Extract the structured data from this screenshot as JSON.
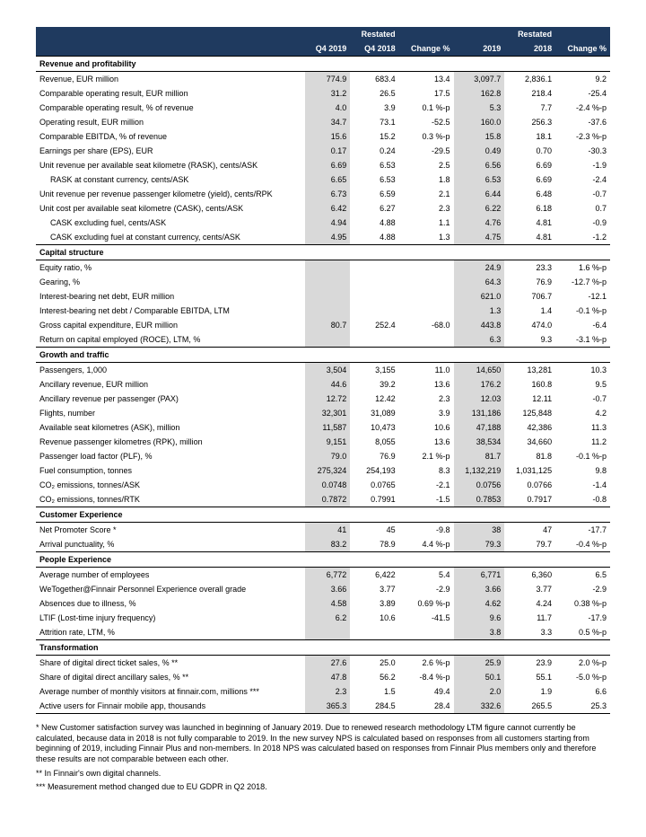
{
  "header": {
    "restated": "Restated",
    "cols": [
      "Q4 2019",
      "Q4 2018",
      "Change %",
      "2019",
      "2018",
      "Change %"
    ]
  },
  "sections": [
    {
      "title": "Revenue and profitability",
      "rows": [
        {
          "l": "Revenue, EUR million",
          "v": [
            "774.9",
            "683.4",
            "13.4",
            "3,097.7",
            "2,836.1",
            "9.2"
          ]
        },
        {
          "l": "Comparable operating result, EUR million",
          "v": [
            "31.2",
            "26.5",
            "17.5",
            "162.8",
            "218.4",
            "-25.4"
          ]
        },
        {
          "l": "Comparable operating result, % of revenue",
          "v": [
            "4.0",
            "3.9",
            "0.1 %-p",
            "5.3",
            "7.7",
            "-2.4 %-p"
          ]
        },
        {
          "l": "Operating result, EUR million",
          "v": [
            "34.7",
            "73.1",
            "-52.5",
            "160.0",
            "256.3",
            "-37.6"
          ]
        },
        {
          "l": "Comparable EBITDA, % of revenue",
          "v": [
            "15.6",
            "15.2",
            "0.3 %-p",
            "15.8",
            "18.1",
            "-2.3 %-p"
          ]
        },
        {
          "l": "Earnings per share (EPS), EUR",
          "v": [
            "0.17",
            "0.24",
            "-29.5",
            "0.49",
            "0.70",
            "-30.3"
          ]
        },
        {
          "l": "Unit revenue per available seat kilometre (RASK), cents/ASK",
          "v": [
            "6.69",
            "6.53",
            "2.5",
            "6.56",
            "6.69",
            "-1.9"
          ]
        },
        {
          "l": "RASK at constant currency, cents/ASK",
          "indent": true,
          "v": [
            "6.65",
            "6.53",
            "1.8",
            "6.53",
            "6.69",
            "-2.4"
          ]
        },
        {
          "l": "Unit revenue per revenue passenger kilometre (yield), cents/RPK",
          "v": [
            "6.73",
            "6.59",
            "2.1",
            "6.44",
            "6.48",
            "-0.7"
          ]
        },
        {
          "l": "Unit cost per available seat kilometre (CASK), cents/ASK",
          "v": [
            "6.42",
            "6.27",
            "2.3",
            "6.22",
            "6.18",
            "0.7"
          ]
        },
        {
          "l": "CASK excluding fuel, cents/ASK",
          "indent": true,
          "v": [
            "4.94",
            "4.88",
            "1.1",
            "4.76",
            "4.81",
            "-0.9"
          ]
        },
        {
          "l": "CASK excluding fuel at constant currency, cents/ASK",
          "indent": true,
          "v": [
            "4.95",
            "4.88",
            "1.3",
            "4.75",
            "4.81",
            "-1.2"
          ]
        }
      ]
    },
    {
      "title": "Capital structure",
      "rows": [
        {
          "l": "Equity ratio, %",
          "v": [
            "",
            "",
            "",
            "24.9",
            "23.3",
            "1.6 %-p"
          ]
        },
        {
          "l": "Gearing, %",
          "v": [
            "",
            "",
            "",
            "64.3",
            "76.9",
            "-12.7 %-p"
          ]
        },
        {
          "l": "Interest-bearing net debt, EUR million",
          "v": [
            "",
            "",
            "",
            "621.0",
            "706.7",
            "-12.1"
          ]
        },
        {
          "l": "Interest-bearing net debt / Comparable EBITDA, LTM",
          "v": [
            "",
            "",
            "",
            "1.3",
            "1.4",
            "-0.1 %-p"
          ]
        },
        {
          "l": "Gross capital expenditure, EUR million",
          "v": [
            "80.7",
            "252.4",
            "-68.0",
            "443.8",
            "474.0",
            "-6.4"
          ]
        },
        {
          "l": "Return on capital employed (ROCE), LTM, %",
          "v": [
            "",
            "",
            "",
            "6.3",
            "9.3",
            "-3.1 %-p"
          ]
        }
      ]
    },
    {
      "title": "Growth and traffic",
      "rows": [
        {
          "l": "Passengers, 1,000",
          "v": [
            "3,504",
            "3,155",
            "11.0",
            "14,650",
            "13,281",
            "10.3"
          ]
        },
        {
          "l": "Ancillary revenue, EUR million",
          "v": [
            "44.6",
            "39.2",
            "13.6",
            "176.2",
            "160.8",
            "9.5"
          ]
        },
        {
          "l": "Ancillary revenue per passenger (PAX)",
          "v": [
            "12.72",
            "12.42",
            "2.3",
            "12.03",
            "12.11",
            "-0.7"
          ]
        },
        {
          "l": "Flights, number",
          "v": [
            "32,301",
            "31,089",
            "3.9",
            "131,186",
            "125,848",
            "4.2"
          ]
        },
        {
          "l": "Available seat kilometres (ASK), million",
          "v": [
            "11,587",
            "10,473",
            "10.6",
            "47,188",
            "42,386",
            "11.3"
          ]
        },
        {
          "l": "Revenue passenger kilometres (RPK), million",
          "v": [
            "9,151",
            "8,055",
            "13.6",
            "38,534",
            "34,660",
            "11.2"
          ]
        },
        {
          "l": "Passenger load factor (PLF), %",
          "v": [
            "79.0",
            "76.9",
            "2.1 %-p",
            "81.7",
            "81.8",
            "-0.1 %-p"
          ]
        },
        {
          "l": "Fuel consumption, tonnes",
          "v": [
            "275,324",
            "254,193",
            "8.3",
            "1,132,219",
            "1,031,125",
            "9.8"
          ]
        },
        {
          "l": "CO₂ emissions, tonnes/ASK",
          "v": [
            "0.0748",
            "0.0765",
            "-2.1",
            "0.0756",
            "0.0766",
            "-1.4"
          ]
        },
        {
          "l": "CO₂ emissions, tonnes/RTK",
          "v": [
            "0.7872",
            "0.7991",
            "-1.5",
            "0.7853",
            "0.7917",
            "-0.8"
          ]
        }
      ]
    },
    {
      "title": "Customer Experience",
      "rows": [
        {
          "l": "Net Promoter Score *",
          "v": [
            "41",
            "45",
            "-9.8",
            "38",
            "47",
            "-17.7"
          ]
        },
        {
          "l": "Arrival punctuality, %",
          "v": [
            "83.2",
            "78.9",
            "4.4 %-p",
            "79.3",
            "79.7",
            "-0.4 %-p"
          ]
        }
      ]
    },
    {
      "title": "People Experience",
      "rows": [
        {
          "l": "Average number of employees",
          "v": [
            "6,772",
            "6,422",
            "5.4",
            "6,771",
            "6,360",
            "6.5"
          ]
        },
        {
          "l": "WeTogether@Finnair Personnel Experience overall grade",
          "v": [
            "3.66",
            "3.77",
            "-2.9",
            "3.66",
            "3.77",
            "-2.9"
          ]
        },
        {
          "l": "Absences due to illness, %",
          "v": [
            "4.58",
            "3.89",
            "0.69 %-p",
            "4.62",
            "4.24",
            "0.38 %-p"
          ]
        },
        {
          "l": "LTIF (Lost-time injury frequency)",
          "v": [
            "6.2",
            "10.6",
            "-41.5",
            "9.6",
            "11.7",
            "-17.9"
          ]
        },
        {
          "l": "Attrition rate, LTM, %",
          "v": [
            "",
            "",
            "",
            "3.8",
            "3.3",
            "0.5 %-p"
          ]
        }
      ]
    },
    {
      "title": "Transformation",
      "rows": [
        {
          "l": "Share of digital direct ticket sales, % **",
          "v": [
            "27.6",
            "25.0",
            "2.6 %-p",
            "25.9",
            "23.9",
            "2.0 %-p"
          ]
        },
        {
          "l": "Share of digital direct ancillary sales, % **",
          "v": [
            "47.8",
            "56.2",
            "-8.4 %-p",
            "50.1",
            "55.1",
            "-5.0 %-p"
          ]
        },
        {
          "l": "Average number of monthly visitors at finnair.com, millions ***",
          "v": [
            "2.3",
            "1.5",
            "49.4",
            "2.0",
            "1.9",
            "6.6"
          ]
        },
        {
          "l": "Active users for Finnair mobile app, thousands",
          "v": [
            "365.3",
            "284.5",
            "28.4",
            "332.6",
            "265.5",
            "25.3"
          ]
        }
      ]
    }
  ],
  "footnotes": [
    "* New Customer satisfaction survey was launched in beginning of January 2019. Due to renewed research methodology LTM figure cannot currently be calculated, because data in 2018 is not fully comparable to 2019. In the new survey NPS is calculated based on responses from all customers starting from beginning of 2019, including Finnair Plus and non-members. In 2018 NPS was calculated based on responses from Finnair Plus members only and therefore these results are not comparable between each other.",
    "** In Finnair's own digital channels.",
    "*** Measurement method changed due to EU GDPR in Q2 2018."
  ]
}
